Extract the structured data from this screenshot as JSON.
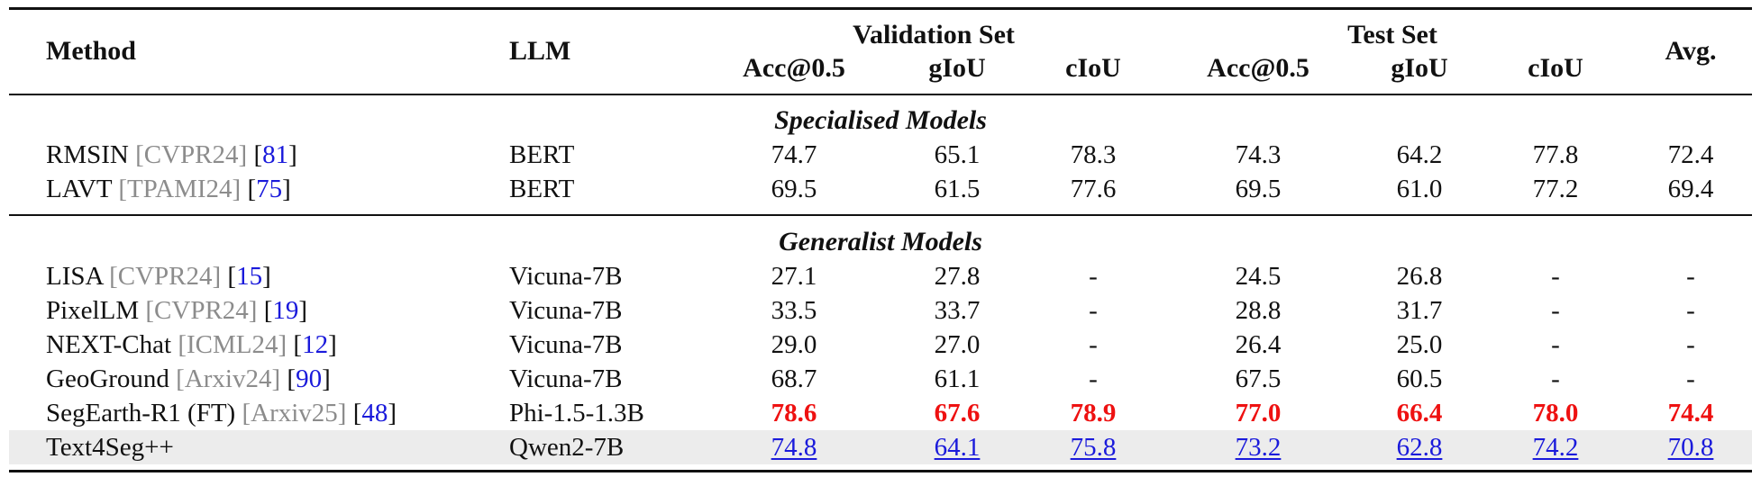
{
  "header": {
    "method": "Method",
    "llm": "LLM",
    "validation_set": "Validation Set",
    "test_set": "Test Set",
    "avg": "Avg.",
    "metrics": [
      "Acc@0.5",
      "gIoU",
      "cIoU",
      "Acc@0.5",
      "gIoU",
      "cIoU"
    ]
  },
  "sections": {
    "specialised": "Specialised Models",
    "generalist": "Generalist Models"
  },
  "rows": [
    {
      "name": "RMSIN",
      "venue": "[CVPR24]",
      "cite_open": "[",
      "ref": "81",
      "cite_close": "]",
      "llm": "BERT",
      "values": [
        "74.7",
        "65.1",
        "78.3",
        "74.3",
        "64.2",
        "77.8",
        "72.4"
      ]
    },
    {
      "name": "LAVT",
      "venue": "[TPAMI24]",
      "cite_open": "[",
      "ref": "75",
      "cite_close": "]",
      "llm": "BERT",
      "values": [
        "69.5",
        "61.5",
        "77.6",
        "69.5",
        "61.0",
        "77.2",
        "69.4"
      ]
    },
    {
      "name": "LISA",
      "venue": "[CVPR24]",
      "cite_open": "[",
      "ref": "15",
      "cite_close": "]",
      "llm": "Vicuna-7B",
      "values": [
        "27.1",
        "27.8",
        "-",
        "24.5",
        "26.8",
        "-",
        "-"
      ]
    },
    {
      "name": "PixelLM",
      "venue": "[CVPR24]",
      "cite_open": "[",
      "ref": "19",
      "cite_close": "]",
      "llm": "Vicuna-7B",
      "values": [
        "33.5",
        "33.7",
        "-",
        "28.8",
        "31.7",
        "-",
        "-"
      ]
    },
    {
      "name": "NEXT-Chat",
      "venue": "[ICML24]",
      "cite_open": "[",
      "ref": "12",
      "cite_close": "]",
      "llm": "Vicuna-7B",
      "values": [
        "29.0",
        "27.0",
        "-",
        "26.4",
        "25.0",
        "-",
        "-"
      ]
    },
    {
      "name": "GeoGround",
      "venue": "[Arxiv24]",
      "cite_open": "[",
      "ref": "90",
      "cite_close": "]",
      "llm": "Vicuna-7B",
      "values": [
        "68.7",
        "61.1",
        "-",
        "67.5",
        "60.5",
        "-",
        "-"
      ]
    },
    {
      "name": "SegEarth-R1 (FT)",
      "venue": "[Arxiv25]",
      "cite_open": "[",
      "ref": "48",
      "cite_close": "]",
      "llm": "Phi-1.5-1.3B",
      "values": [
        "78.6",
        "67.6",
        "78.9",
        "77.0",
        "66.4",
        "78.0",
        "74.4"
      ]
    },
    {
      "name": "Text4Seg++",
      "llm": "Qwen2-7B",
      "values": [
        "74.8",
        "64.1",
        "75.8",
        "73.2",
        "62.8",
        "74.2",
        "70.8"
      ]
    }
  ],
  "colors": {
    "best": "#ee1111",
    "second": "#1a1adb",
    "venue": "#8c8c8c",
    "highlight_row": "#ececec"
  }
}
